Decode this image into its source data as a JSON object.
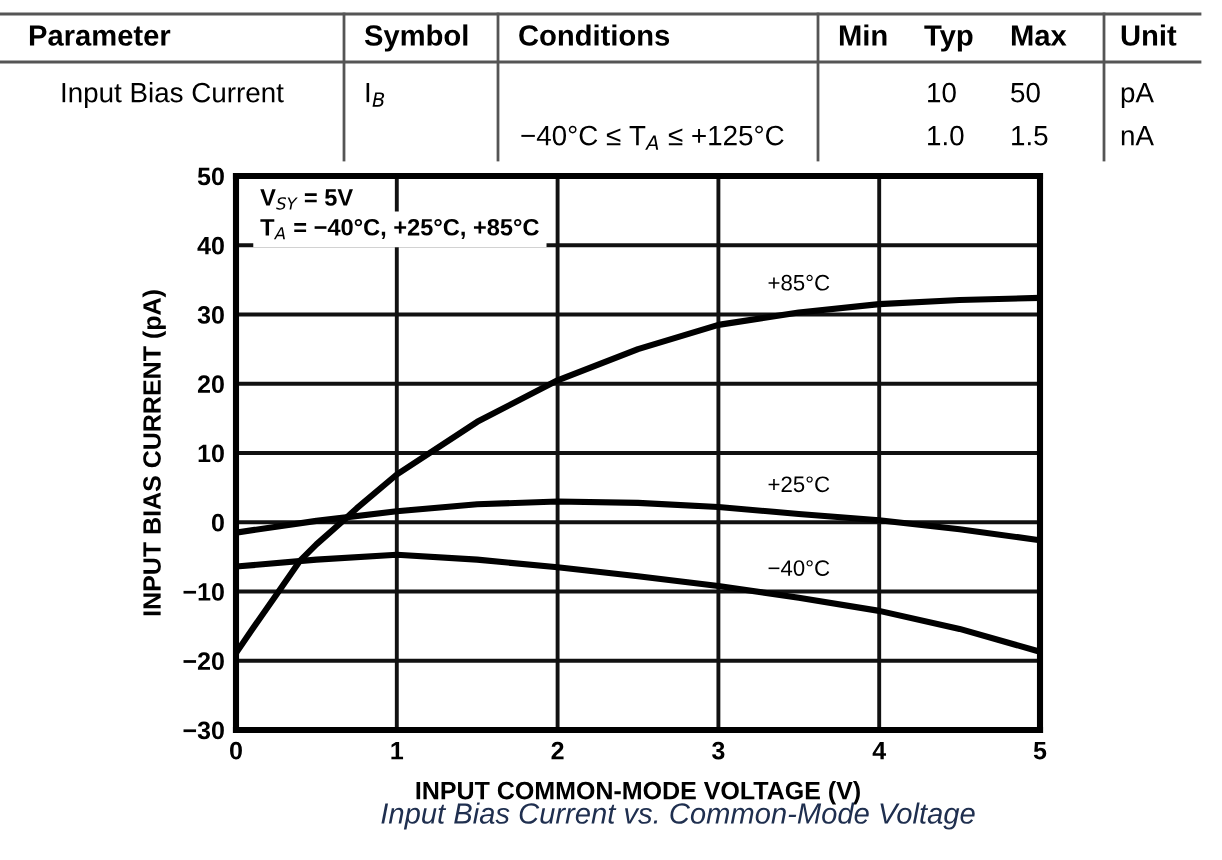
{
  "chart_data": {
    "type": "line",
    "xlabel": "INPUT COMMON-MODE VOLTAGE (V)",
    "ylabel": "INPUT BIAS CURRENT (pA)",
    "annotations": [
      "Parameter",
      "Symbol",
      "Conditions",
      "Min",
      "Typ",
      "Max",
      "Unit",
      "Input Bias Current",
      "I$_{B}$",
      "10",
      "50",
      "pA",
      "−40°C ≤ T$_{A}$ ≤ +125°C",
      "1.0",
      "1.5",
      "nA",
      "V$_{SY}$ = 5V",
      "T$_{A}$ = −40°C, +25°C, +85°C",
      "Input Bias Current vs. Common-Mode Voltage"
    ],
    "xlim": [
      0,
      5
    ],
    "xticks": [
      0,
      1,
      2,
      3,
      4,
      5
    ],
    "ylim": [
      -30,
      50
    ],
    "yticks": [
      {
        "value": -30,
        "label": "−30"
      },
      {
        "value": -20,
        "label": "−20"
      },
      {
        "value": -10,
        "label": "−10"
      },
      0,
      10,
      20,
      30,
      40,
      50
    ],
    "grid": true,
    "series": [
      {
        "name": "+85°C",
        "color": "#000000",
        "x": [
          0,
          0.1,
          0.25,
          0.4,
          0.5,
          0.67,
          0.75,
          1.0,
          1.5,
          2.0,
          2.5,
          3.0,
          3.5,
          4.0,
          4.5,
          5.0
        ],
        "values": [
          -18.9,
          -15.5,
          -10.5,
          -5.5,
          -3.2,
          0.3,
          2.0,
          6.9,
          14.5,
          20.5,
          25.0,
          28.5,
          30.3,
          31.5,
          32.1,
          32.4
        ]
      },
      {
        "name": "+25°C",
        "color": "#000000",
        "x": [
          0,
          0.5,
          1.0,
          1.5,
          2.0,
          2.5,
          3.0,
          3.5,
          4.0,
          4.5,
          5.0
        ],
        "values": [
          -1.5,
          0.2,
          1.6,
          2.6,
          3.0,
          2.8,
          2.2,
          1.2,
          0.3,
          -1.0,
          -2.6
        ]
      },
      {
        "name": "−40°C",
        "color": "#000000",
        "x": [
          0,
          0.5,
          1.0,
          1.5,
          2.0,
          2.5,
          3.0,
          3.5,
          4.0,
          4.5,
          5.0
        ],
        "values": [
          -6.4,
          -5.4,
          -4.7,
          -5.4,
          -6.5,
          -7.8,
          -9.2,
          -10.9,
          -12.8,
          -15.4,
          -18.7
        ]
      }
    ]
  }
}
